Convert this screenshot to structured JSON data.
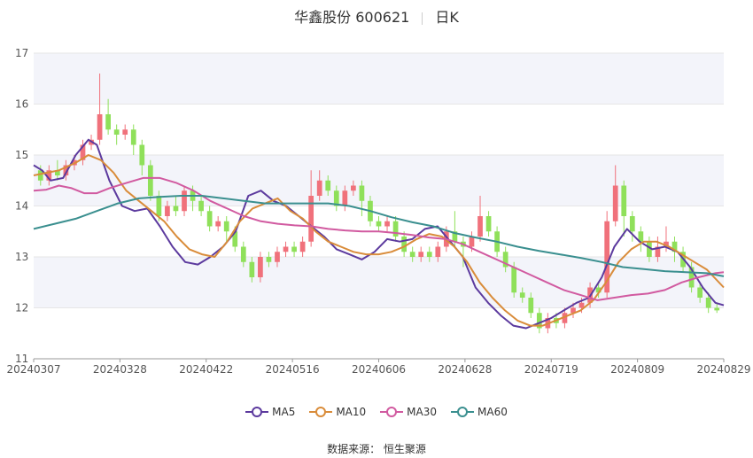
{
  "header": {
    "stock": "华鑫股份 600621",
    "period": "日K"
  },
  "source": {
    "label": "数据来源：",
    "value": "恒生聚源"
  },
  "colors": {
    "up": "#f0717b",
    "down": "#8fe05a",
    "grid": "#e6e6e6",
    "band": "#f3f4fa"
  },
  "chart_data": {
    "type": "candlestick",
    "y_ticks": [
      "11",
      "12",
      "13",
      "14",
      "15",
      "16",
      "17"
    ],
    "x_ticks": [
      "20240307",
      "20240328",
      "20240422",
      "20240516",
      "20240606",
      "20240628",
      "20240719",
      "20240809",
      "20240829"
    ],
    "ylim": [
      11,
      17
    ],
    "series": [
      {
        "name": "MA5",
        "color": "#5c3a9e",
        "points": [
          [
            0,
            14.8
          ],
          [
            2,
            14.7
          ],
          [
            4,
            14.5
          ],
          [
            7,
            14.55
          ],
          [
            10,
            15.0
          ],
          [
            13,
            15.3
          ],
          [
            15,
            15.2
          ],
          [
            18,
            14.5
          ],
          [
            21,
            14.0
          ],
          [
            24,
            13.9
          ],
          [
            27,
            13.95
          ],
          [
            30,
            13.6
          ],
          [
            33,
            13.2
          ],
          [
            36,
            12.9
          ],
          [
            39,
            12.85
          ],
          [
            42,
            13.0
          ],
          [
            45,
            13.2
          ],
          [
            48,
            13.5
          ],
          [
            51,
            14.2
          ],
          [
            54,
            14.3
          ],
          [
            57,
            14.1
          ],
          [
            60,
            14.0
          ],
          [
            63,
            13.8
          ],
          [
            66,
            13.6
          ],
          [
            69,
            13.4
          ],
          [
            72,
            13.15
          ],
          [
            75,
            13.05
          ],
          [
            78,
            12.95
          ],
          [
            81,
            13.1
          ],
          [
            84,
            13.35
          ],
          [
            87,
            13.3
          ],
          [
            90,
            13.35
          ],
          [
            93,
            13.55
          ],
          [
            96,
            13.6
          ],
          [
            99,
            13.3
          ],
          [
            102,
            13.0
          ],
          [
            105,
            12.4
          ],
          [
            108,
            12.1
          ],
          [
            111,
            11.85
          ],
          [
            114,
            11.65
          ],
          [
            117,
            11.6
          ],
          [
            120,
            11.7
          ],
          [
            123,
            11.8
          ],
          [
            126,
            11.95
          ],
          [
            129,
            12.1
          ],
          [
            132,
            12.2
          ],
          [
            135,
            12.6
          ],
          [
            138,
            13.2
          ],
          [
            141,
            13.55
          ],
          [
            144,
            13.3
          ],
          [
            147,
            13.15
          ],
          [
            150,
            13.2
          ],
          [
            153,
            13.1
          ],
          [
            156,
            12.8
          ],
          [
            159,
            12.4
          ],
          [
            162,
            12.1
          ],
          [
            164,
            12.05
          ]
        ]
      },
      {
        "name": "MA10",
        "color": "#d98c3a",
        "points": [
          [
            0,
            14.6
          ],
          [
            3,
            14.65
          ],
          [
            6,
            14.7
          ],
          [
            10,
            14.85
          ],
          [
            13,
            15.0
          ],
          [
            16,
            14.9
          ],
          [
            19,
            14.65
          ],
          [
            22,
            14.3
          ],
          [
            25,
            14.1
          ],
          [
            28,
            13.9
          ],
          [
            31,
            13.7
          ],
          [
            34,
            13.4
          ],
          [
            37,
            13.15
          ],
          [
            40,
            13.05
          ],
          [
            43,
            13.0
          ],
          [
            46,
            13.3
          ],
          [
            49,
            13.7
          ],
          [
            52,
            13.95
          ],
          [
            55,
            14.05
          ],
          [
            58,
            14.15
          ],
          [
            61,
            13.9
          ],
          [
            64,
            13.75
          ],
          [
            67,
            13.5
          ],
          [
            70,
            13.3
          ],
          [
            73,
            13.2
          ],
          [
            76,
            13.1
          ],
          [
            79,
            13.05
          ],
          [
            82,
            13.05
          ],
          [
            85,
            13.1
          ],
          [
            88,
            13.2
          ],
          [
            91,
            13.35
          ],
          [
            94,
            13.45
          ],
          [
            97,
            13.4
          ],
          [
            100,
            13.2
          ],
          [
            103,
            12.9
          ],
          [
            106,
            12.5
          ],
          [
            109,
            12.2
          ],
          [
            112,
            11.95
          ],
          [
            115,
            11.75
          ],
          [
            118,
            11.65
          ],
          [
            121,
            11.65
          ],
          [
            124,
            11.75
          ],
          [
            127,
            11.85
          ],
          [
            130,
            11.95
          ],
          [
            133,
            12.15
          ],
          [
            136,
            12.5
          ],
          [
            139,
            12.9
          ],
          [
            142,
            13.15
          ],
          [
            145,
            13.3
          ],
          [
            148,
            13.3
          ],
          [
            151,
            13.2
          ],
          [
            154,
            13.05
          ],
          [
            157,
            12.9
          ],
          [
            160,
            12.75
          ],
          [
            164,
            12.4
          ]
        ]
      },
      {
        "name": "MA30",
        "color": "#d15aa0",
        "points": [
          [
            0,
            14.3
          ],
          [
            3,
            14.32
          ],
          [
            6,
            14.4
          ],
          [
            9,
            14.35
          ],
          [
            12,
            14.25
          ],
          [
            15,
            14.25
          ],
          [
            18,
            14.35
          ],
          [
            22,
            14.45
          ],
          [
            26,
            14.55
          ],
          [
            30,
            14.55
          ],
          [
            34,
            14.45
          ],
          [
            38,
            14.3
          ],
          [
            42,
            14.1
          ],
          [
            46,
            13.95
          ],
          [
            50,
            13.8
          ],
          [
            54,
            13.7
          ],
          [
            58,
            13.65
          ],
          [
            62,
            13.62
          ],
          [
            66,
            13.6
          ],
          [
            70,
            13.55
          ],
          [
            74,
            13.52
          ],
          [
            78,
            13.5
          ],
          [
            82,
            13.5
          ],
          [
            86,
            13.47
          ],
          [
            90,
            13.43
          ],
          [
            94,
            13.38
          ],
          [
            98,
            13.35
          ],
          [
            102,
            13.25
          ],
          [
            106,
            13.1
          ],
          [
            110,
            12.95
          ],
          [
            114,
            12.8
          ],
          [
            118,
            12.65
          ],
          [
            122,
            12.5
          ],
          [
            126,
            12.35
          ],
          [
            130,
            12.25
          ],
          [
            134,
            12.15
          ],
          [
            138,
            12.2
          ],
          [
            142,
            12.25
          ],
          [
            146,
            12.28
          ],
          [
            150,
            12.35
          ],
          [
            154,
            12.5
          ],
          [
            158,
            12.6
          ],
          [
            162,
            12.68
          ],
          [
            164,
            12.7
          ]
        ]
      },
      {
        "name": "MA60",
        "color": "#3a8f8f",
        "points": [
          [
            0,
            13.55
          ],
          [
            5,
            13.65
          ],
          [
            10,
            13.75
          ],
          [
            15,
            13.9
          ],
          [
            20,
            14.05
          ],
          [
            25,
            14.15
          ],
          [
            30,
            14.18
          ],
          [
            35,
            14.2
          ],
          [
            40,
            14.2
          ],
          [
            45,
            14.15
          ],
          [
            50,
            14.1
          ],
          [
            55,
            14.05
          ],
          [
            60,
            14.05
          ],
          [
            65,
            14.05
          ],
          [
            70,
            14.05
          ],
          [
            75,
            14.0
          ],
          [
            80,
            13.9
          ],
          [
            85,
            13.78
          ],
          [
            90,
            13.68
          ],
          [
            95,
            13.6
          ],
          [
            100,
            13.47
          ],
          [
            105,
            13.38
          ],
          [
            110,
            13.3
          ],
          [
            115,
            13.2
          ],
          [
            120,
            13.12
          ],
          [
            125,
            13.05
          ],
          [
            130,
            12.98
          ],
          [
            135,
            12.9
          ],
          [
            140,
            12.8
          ],
          [
            145,
            12.76
          ],
          [
            150,
            12.72
          ],
          [
            155,
            12.7
          ],
          [
            160,
            12.68
          ],
          [
            164,
            12.62
          ]
        ]
      }
    ],
    "candles": [
      [
        14.7,
        14.5,
        14.8,
        14.4
      ],
      [
        14.5,
        14.7,
        14.8,
        14.4
      ],
      [
        14.7,
        14.6,
        14.9,
        14.5
      ],
      [
        14.6,
        14.8,
        14.9,
        14.5
      ],
      [
        14.8,
        14.9,
        15.0,
        14.7
      ],
      [
        14.9,
        15.2,
        15.3,
        14.8
      ],
      [
        15.2,
        15.3,
        15.4,
        15.1
      ],
      [
        15.3,
        15.8,
        16.6,
        15.2
      ],
      [
        15.8,
        15.5,
        16.1,
        15.4
      ],
      [
        15.5,
        15.4,
        15.6,
        15.2
      ],
      [
        15.4,
        15.5,
        15.6,
        15.3
      ],
      [
        15.5,
        15.2,
        15.6,
        15.0
      ],
      [
        15.2,
        14.8,
        15.3,
        14.6
      ],
      [
        14.8,
        14.2,
        14.9,
        14.1
      ],
      [
        14.2,
        13.8,
        14.3,
        13.7
      ],
      [
        13.8,
        14.0,
        14.1,
        13.7
      ],
      [
        14.0,
        13.9,
        14.2,
        13.8
      ],
      [
        13.9,
        14.3,
        14.4,
        13.8
      ],
      [
        14.3,
        14.1,
        14.4,
        13.9
      ],
      [
        14.1,
        13.9,
        14.2,
        13.8
      ],
      [
        13.9,
        13.6,
        14.0,
        13.5
      ],
      [
        13.6,
        13.7,
        13.8,
        13.5
      ],
      [
        13.7,
        13.5,
        13.8,
        13.3
      ],
      [
        13.5,
        13.2,
        13.6,
        13.1
      ],
      [
        13.2,
        12.9,
        13.3,
        12.8
      ],
      [
        12.9,
        12.6,
        13.0,
        12.5
      ],
      [
        12.6,
        13.0,
        13.1,
        12.5
      ],
      [
        13.0,
        12.9,
        13.1,
        12.8
      ],
      [
        12.9,
        13.1,
        13.2,
        12.8
      ],
      [
        13.1,
        13.2,
        13.3,
        13.0
      ],
      [
        13.2,
        13.1,
        13.3,
        13.0
      ],
      [
        13.1,
        13.3,
        13.4,
        13.0
      ],
      [
        13.3,
        14.2,
        14.7,
        13.2
      ],
      [
        14.2,
        14.5,
        14.7,
        14.1
      ],
      [
        14.5,
        14.3,
        14.6,
        14.2
      ],
      [
        14.3,
        14.0,
        14.4,
        13.9
      ],
      [
        14.0,
        14.3,
        14.4,
        13.9
      ],
      [
        14.3,
        14.4,
        14.5,
        14.2
      ],
      [
        14.4,
        14.1,
        14.5,
        13.8
      ],
      [
        14.1,
        13.7,
        14.2,
        13.6
      ],
      [
        13.7,
        13.6,
        13.8,
        13.5
      ],
      [
        13.6,
        13.7,
        13.8,
        13.5
      ],
      [
        13.7,
        13.4,
        13.8,
        13.3
      ],
      [
        13.4,
        13.1,
        13.5,
        13.0
      ],
      [
        13.1,
        13.0,
        13.2,
        12.9
      ],
      [
        13.0,
        13.1,
        13.2,
        12.9
      ],
      [
        13.1,
        13.0,
        13.2,
        12.9
      ],
      [
        13.0,
        13.2,
        13.3,
        12.9
      ],
      [
        13.2,
        13.5,
        13.6,
        13.1
      ],
      [
        13.5,
        13.3,
        13.9,
        13.2
      ],
      [
        13.3,
        13.2,
        13.4,
        12.8
      ],
      [
        13.2,
        13.4,
        13.5,
        13.1
      ],
      [
        13.4,
        13.8,
        14.2,
        13.3
      ],
      [
        13.8,
        13.5,
        13.9,
        13.4
      ],
      [
        13.5,
        13.1,
        13.6,
        13.0
      ],
      [
        13.1,
        12.8,
        13.2,
        12.7
      ],
      [
        12.8,
        12.3,
        12.9,
        12.2
      ],
      [
        12.3,
        12.2,
        12.4,
        12.1
      ],
      [
        12.2,
        11.9,
        12.3,
        11.8
      ],
      [
        11.9,
        11.6,
        12.0,
        11.5
      ],
      [
        11.6,
        11.8,
        11.9,
        11.5
      ],
      [
        11.8,
        11.7,
        11.9,
        11.6
      ],
      [
        11.7,
        11.9,
        12.0,
        11.6
      ],
      [
        11.9,
        12.0,
        12.1,
        11.8
      ],
      [
        12.0,
        12.1,
        12.2,
        11.9
      ],
      [
        12.1,
        12.4,
        12.5,
        12.0
      ],
      [
        12.4,
        12.3,
        12.5,
        12.2
      ],
      [
        12.3,
        13.7,
        13.9,
        12.2
      ],
      [
        13.7,
        14.4,
        14.8,
        13.6
      ],
      [
        14.4,
        13.8,
        14.5,
        13.4
      ],
      [
        13.8,
        13.5,
        13.9,
        13.3
      ],
      [
        13.5,
        13.3,
        13.6,
        13.1
      ],
      [
        13.3,
        13.0,
        13.4,
        12.9
      ],
      [
        13.0,
        13.2,
        13.4,
        12.9
      ],
      [
        13.2,
        13.3,
        13.6,
        13.1
      ],
      [
        13.3,
        13.1,
        13.4,
        12.9
      ],
      [
        13.1,
        12.8,
        13.2,
        12.7
      ],
      [
        12.8,
        12.4,
        12.9,
        12.3
      ],
      [
        12.4,
        12.2,
        12.5,
        12.1
      ],
      [
        12.2,
        12.0,
        12.3,
        11.9
      ],
      [
        12.0,
        11.95,
        12.1,
        11.9
      ]
    ]
  }
}
